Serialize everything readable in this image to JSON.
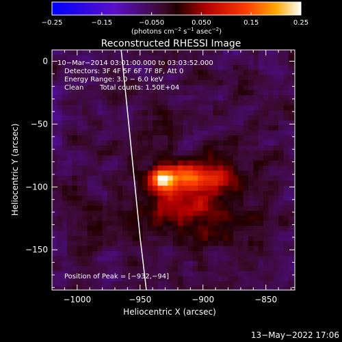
{
  "chart_data": {
    "type": "heatmap",
    "title": "Reconstructed RHESSI Image",
    "xlabel": "Heliocentric X (arcsec)",
    "ylabel": "Heliocentric Y (arcsec)",
    "xlim": [
      -1020,
      -827
    ],
    "ylim": [
      -182,
      9
    ],
    "x_ticks": [
      -1000,
      -950,
      -900,
      -850
    ],
    "x_tick_labels": [
      "−1000",
      "−950",
      "−900",
      "−850"
    ],
    "y_ticks": [
      0,
      -50,
      -100,
      -150
    ],
    "y_tick_labels": [
      "0",
      "−50",
      "−100",
      "−150"
    ],
    "colorbar": {
      "range": [
        -0.25,
        0.25
      ],
      "ticks": [
        -0.25,
        -0.15,
        -0.05,
        0.05,
        0.15,
        0.25
      ],
      "tick_labels": [
        "−0.25",
        "−0.15",
        "−0.050",
        "0.050",
        "0.15",
        "0.25"
      ],
      "unit_prefix": "(photons cm",
      "unit_exp1": "−2",
      "unit_mid": " s",
      "unit_exp2": "−1",
      "unit_mid2": " asec",
      "unit_exp3": "−2",
      "unit_suffix": ")"
    },
    "annotations": [
      "10−Mar−2014 03:01:00.000 to 03:03:52.000",
      "Detectors: 3F 4F 5F 6F 7F 8F, Att 0",
      "Energy Range: 3.0 − 6.0 keV",
      "Clean",
      "Total counts: 1.50E+04"
    ],
    "peak_label": "Position of Peak = [−932,−94]",
    "peak": [
      -932,
      -94
    ],
    "limb_curve": [
      [
        -965,
        9
      ],
      [
        -960,
        -40
      ],
      [
        -955,
        -90
      ],
      [
        -950,
        -140
      ],
      [
        -945,
        -182
      ]
    ],
    "sources": [
      {
        "x": -932,
        "y": -94,
        "value": 0.25,
        "sx": 7,
        "sy": 6
      },
      {
        "x": -911,
        "y": -92,
        "value": 0.14,
        "sx": 10,
        "sy": 7
      },
      {
        "x": -888,
        "y": -93,
        "value": 0.08,
        "sx": 8,
        "sy": 7
      },
      {
        "x": -915,
        "y": -112,
        "value": 0.07,
        "sx": 24,
        "sy": 16
      },
      {
        "x": -900,
        "y": -110,
        "value": 0.04,
        "sx": 45,
        "sy": 45
      },
      {
        "x": -940,
        "y": -55,
        "value": 0.035,
        "sx": 10,
        "sy": 10
      },
      {
        "x": -990,
        "y": -120,
        "value": 0.02,
        "sx": 12,
        "sy": 18
      },
      {
        "x": -880,
        "y": -20,
        "value": 0.02,
        "sx": 15,
        "sy": 12
      }
    ],
    "background": -0.05,
    "timestamp": "13−May−2022 17:06"
  }
}
